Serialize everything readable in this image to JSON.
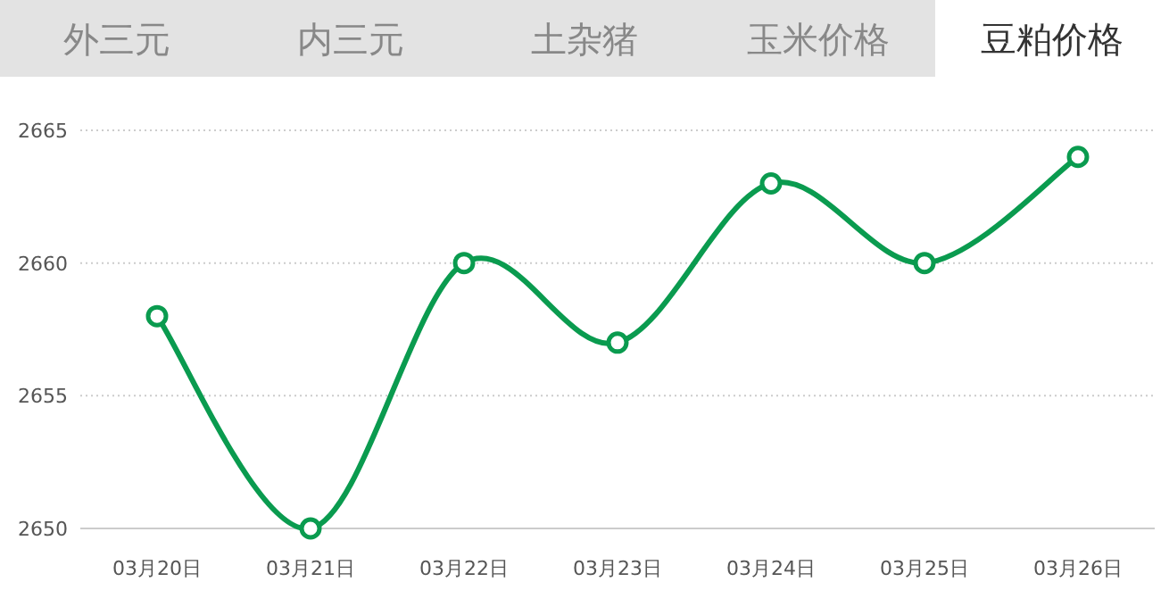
{
  "chart_data": {
    "type": "line",
    "title": "豆粕价格",
    "annotations": [
      "外三元",
      "内三元",
      "土杂猪",
      "玉米价格"
    ],
    "categories": [
      "03月20日",
      "03月21日",
      "03月22日",
      "03月23日",
      "03月24日",
      "03月25日",
      "03月26日"
    ],
    "values": [
      2658,
      2650,
      2660,
      2657,
      2663,
      2660,
      2664
    ],
    "color": "#0a9b4f",
    "marker": "circle",
    "grid": "y",
    "ylim": [
      2650,
      2665
    ],
    "yticks": [
      2650,
      2655,
      2660,
      2665
    ]
  }
}
